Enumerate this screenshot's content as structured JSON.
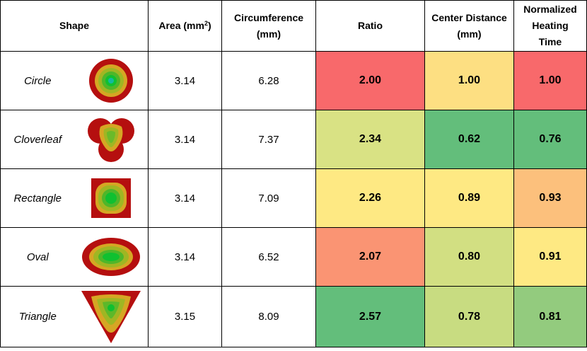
{
  "headers": {
    "shape": "Shape",
    "area": "Area (mm",
    "area_sup": "2",
    "area_close": ")",
    "circumference_line1": "Circumference",
    "circumference_line2": "(mm)",
    "ratio": "Ratio",
    "center_distance_line1": "Center Distance",
    "center_distance_line2": "(mm)",
    "heating_line1": "Normalized",
    "heating_line2": "Heating",
    "heating_line3": "Time"
  },
  "rows": [
    {
      "name": "Circle",
      "icon": "circle-heatmap-icon",
      "area": "3.14",
      "circumference": "6.28",
      "ratio": "2.00",
      "center_distance": "1.00",
      "heating_time": "1.00",
      "ratio_color": "#f8696b",
      "center_color": "#fddf82",
      "heating_color": "#f8696b"
    },
    {
      "name": "Cloverleaf",
      "icon": "cloverleaf-heatmap-icon",
      "area": "3.14",
      "circumference": "7.37",
      "ratio": "2.34",
      "center_distance": "0.62",
      "heating_time": "0.76",
      "ratio_color": "#d9e284",
      "center_color": "#63be7b",
      "heating_color": "#63be7b"
    },
    {
      "name": "Rectangle",
      "icon": "rectangle-heatmap-icon",
      "area": "3.14",
      "circumference": "7.09",
      "ratio": "2.26",
      "center_distance": "0.89",
      "heating_time": "0.93",
      "ratio_color": "#fee983",
      "center_color": "#fee983",
      "heating_color": "#fcc07c"
    },
    {
      "name": "Oval",
      "icon": "oval-heatmap-icon",
      "area": "3.14",
      "circumference": "6.52",
      "ratio": "2.07",
      "center_distance": "0.80",
      "heating_time": "0.91",
      "ratio_color": "#fa9473",
      "center_color": "#d2df82",
      "heating_color": "#fee983"
    },
    {
      "name": "Triangle",
      "icon": "triangle-heatmap-icon",
      "area": "3.15",
      "circumference": "8.09",
      "ratio": "2.57",
      "center_distance": "0.78",
      "heating_time": "0.81",
      "ratio_color": "#63be7b",
      "center_color": "#c8dc81",
      "heating_color": "#93cb7e"
    }
  ]
}
